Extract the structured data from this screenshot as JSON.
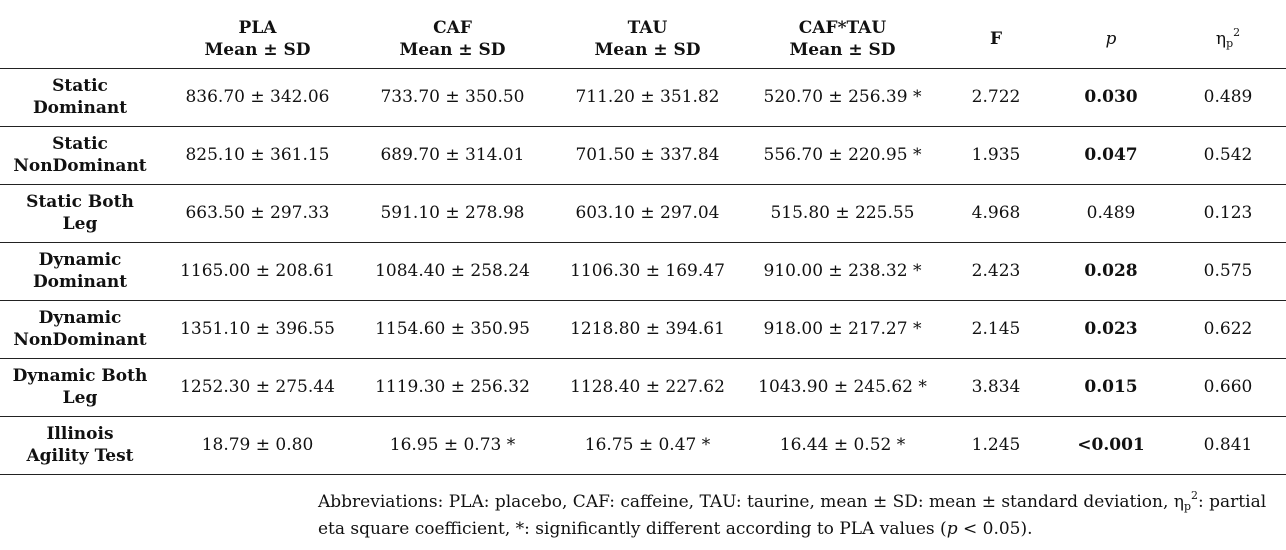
{
  "header": {
    "pla_l1": "PLA",
    "pla_l2": "Mean ± SD",
    "caf_l1": "CAF",
    "caf_l2": "Mean ± SD",
    "tau_l1": "TAU",
    "tau_l2": "Mean ± SD",
    "caftau_l1": "CAF*TAU",
    "caftau_l2": "Mean ± SD",
    "f": "F",
    "p": "p",
    "eta_base": "η",
    "eta_sub": "p",
    "eta_sup": "2"
  },
  "rows": [
    {
      "label1": "Static",
      "label2": "Dominant",
      "pla": "836.70 ± 342.06",
      "caf": "733.70 ± 350.50",
      "tau": "711.20 ± 351.82",
      "caftau": "520.70 ± 256.39 *",
      "f": "2.722",
      "p": "0.030",
      "p_bold": true,
      "eta": "0.489"
    },
    {
      "label1": "Static",
      "label2": "NonDominant",
      "pla": "825.10 ± 361.15",
      "caf": "689.70 ± 314.01",
      "tau": "701.50 ± 337.84",
      "caftau": "556.70 ± 220.95 *",
      "f": "1.935",
      "p": "0.047",
      "p_bold": true,
      "eta": "0.542"
    },
    {
      "label1": "Static Both",
      "label2": "Leg",
      "pla": "663.50 ± 297.33",
      "caf": "591.10 ± 278.98",
      "tau": "603.10 ± 297.04",
      "caftau": "515.80 ± 225.55",
      "f": "4.968",
      "p": "0.489",
      "p_bold": false,
      "eta": "0.123"
    },
    {
      "label1": "Dynamic",
      "label2": "Dominant",
      "pla": "1165.00 ± 208.61",
      "caf": "1084.40 ± 258.24",
      "tau": "1106.30 ± 169.47",
      "caftau": "910.00 ± 238.32 *",
      "f": "2.423",
      "p": "0.028",
      "p_bold": true,
      "eta": "0.575"
    },
    {
      "label1": "Dynamic",
      "label2": "NonDominant",
      "pla": "1351.10 ± 396.55",
      "caf": "1154.60 ± 350.95",
      "tau": "1218.80 ± 394.61",
      "caftau": "918.00 ± 217.27 *",
      "f": "2.145",
      "p": "0.023",
      "p_bold": true,
      "eta": "0.622"
    },
    {
      "label1": "Dynamic Both",
      "label2": "Leg",
      "pla": "1252.30 ± 275.44",
      "caf": "1119.30 ± 256.32",
      "tau": "1128.40 ± 227.62",
      "caftau": "1043.90 ± 245.62 *",
      "f": "3.834",
      "p": "0.015",
      "p_bold": true,
      "eta": "0.660"
    },
    {
      "label1": "Illinois",
      "label2": "Agility Test",
      "pla": "18.79 ± 0.80",
      "caf": "16.95 ± 0.73 *",
      "tau": "16.75 ± 0.47 *",
      "caftau": "16.44 ± 0.52 *",
      "f": "1.245",
      "p": "<0.001",
      "p_bold": true,
      "eta": "0.841"
    }
  ],
  "note": {
    "part1": "Abbreviations: PLA: placebo, CAF: caffeine, TAU: taurine, mean ± SD: mean ± standard deviation, η",
    "eta_sub": "p",
    "eta_sup": "2",
    "part2": ": partial",
    "line2_a": "eta square coefficient, *: significantly different according to PLA values (",
    "line2_p": "p",
    "line2_b": " < 0.05)."
  }
}
